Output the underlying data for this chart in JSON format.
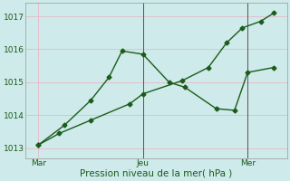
{
  "xlabel": "Pression niveau de la mer( hPa )",
  "xtick_labels": [
    "Mar",
    "Jeu",
    "Mer"
  ],
  "xtick_positions": [
    0,
    4,
    8
  ],
  "ylim": [
    1012.7,
    1017.4
  ],
  "xlim": [
    -0.5,
    9.5
  ],
  "background_color": "#ceeaea",
  "grid_color": "#e8b8c8",
  "line_color": "#1a5c1a",
  "vline_color": "#555555",
  "vline_positions": [
    4,
    8
  ],
  "line1_x": [
    0.0,
    1.0,
    2.0,
    2.7,
    3.2,
    4.0,
    5.0,
    5.6,
    6.8,
    7.5,
    8.0,
    9.0
  ],
  "line1_y": [
    1013.1,
    1013.7,
    1014.45,
    1015.15,
    1015.95,
    1015.85,
    1015.0,
    1014.85,
    1014.2,
    1014.15,
    1015.3,
    1015.45
  ],
  "line2_x": [
    0.0,
    0.8,
    2.0,
    3.5,
    4.0,
    5.5,
    6.5,
    7.2,
    7.8,
    8.5,
    9.0
  ],
  "line2_y": [
    1013.1,
    1013.45,
    1013.85,
    1014.35,
    1014.65,
    1015.05,
    1015.45,
    1016.2,
    1016.65,
    1016.85,
    1017.1
  ],
  "marker": "D",
  "markersize": 2.5,
  "linewidth": 1.0,
  "xlabel_fontsize": 7.5,
  "tick_fontsize": 6.5
}
